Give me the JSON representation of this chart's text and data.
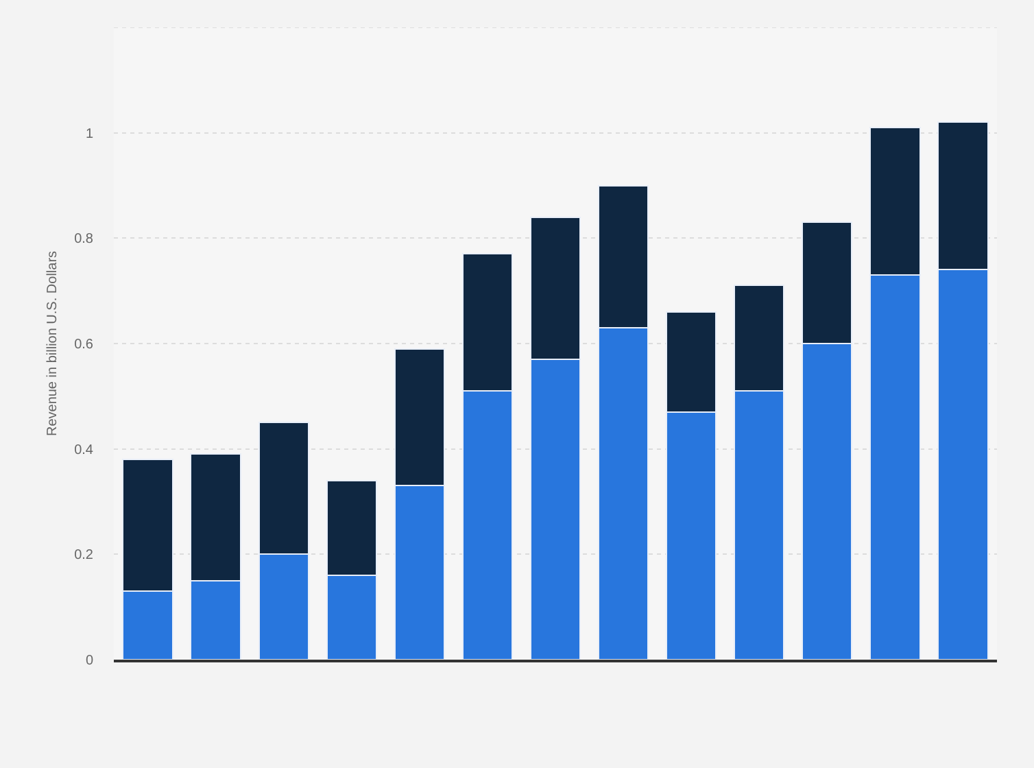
{
  "chart_data": {
    "type": "bar",
    "stacked": true,
    "ylabel": "Revenue in billion U.S. Dollars",
    "categories": [
      null,
      null,
      null,
      null,
      null,
      null,
      null,
      null,
      null,
      null,
      null,
      null,
      null
    ],
    "series": [
      {
        "color": "#2876dd",
        "values": [
          0.13,
          0.15,
          0.2,
          0.16,
          0.33,
          0.51,
          0.57,
          0.63,
          0.47,
          0.51,
          0.6,
          0.73,
          0.74
        ]
      },
      {
        "color": "#0f2741",
        "values": [
          0.25,
          0.24,
          0.25,
          0.18,
          0.26,
          0.26,
          0.27,
          0.27,
          0.19,
          0.2,
          0.23,
          0.28,
          0.28
        ]
      }
    ],
    "ylim": [
      0,
      1.2
    ],
    "yticks": [
      0,
      0.2,
      0.4,
      0.6,
      0.8,
      1,
      {
        "value": 1.2,
        "label": null
      }
    ],
    "grid": "y",
    "tick_labels": "y"
  }
}
